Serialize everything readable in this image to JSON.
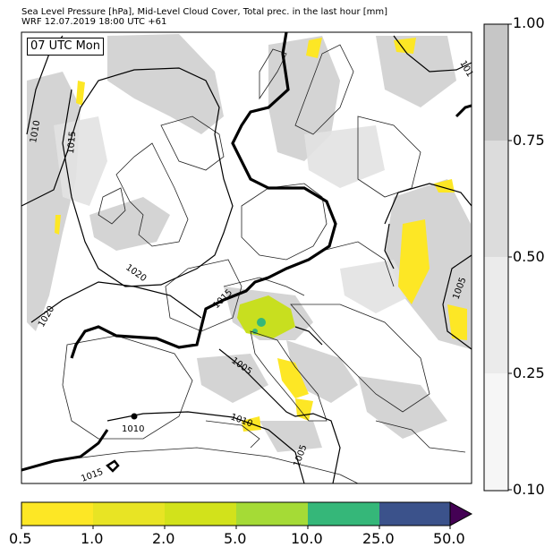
{
  "header": {
    "title_line_1": "Sea Level Pressure [hPa], Mid-Level Cloud Cover, Total prec. in the last hour [mm]",
    "title_line_2": "WRF 12.07.2019 18:00 UTC +61"
  },
  "map": {
    "time_label": "07 UTC Mon",
    "isobar_labels": [
      "1010",
      "1015",
      "1020",
      "1020",
      "1015",
      "1005",
      "1010",
      "1010",
      "1005",
      "1015",
      "1005",
      "101"
    ]
  },
  "cloud_colorbar": {
    "ticks": [
      "1.00",
      "0.75",
      "0.50",
      "0.25",
      "0.10"
    ],
    "colors": [
      "#c6c6c6",
      "#dcdcdc",
      "#ebebeb",
      "#f6f6f6"
    ]
  },
  "precip_colorbar": {
    "ticks": [
      "0.5",
      "1.0",
      "2.0",
      "5.0",
      "10.0",
      "25.0",
      "50.0"
    ],
    "colors": [
      "#fde725",
      "#e8e424",
      "#d2e21b",
      "#a5db36",
      "#35b779",
      "#3b528b",
      "#440154"
    ]
  }
}
